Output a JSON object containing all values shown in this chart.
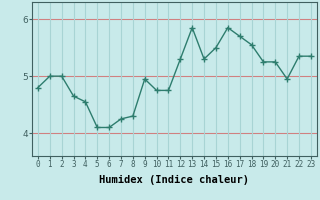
{
  "xlabel": "Humidex (Indice chaleur)",
  "x": [
    0,
    1,
    2,
    3,
    4,
    5,
    6,
    7,
    8,
    9,
    10,
    11,
    12,
    13,
    14,
    15,
    16,
    17,
    18,
    19,
    20,
    21,
    22,
    23
  ],
  "y": [
    4.8,
    5.0,
    5.0,
    4.65,
    4.55,
    4.1,
    4.1,
    4.25,
    4.3,
    4.95,
    4.75,
    4.75,
    5.3,
    5.85,
    5.3,
    5.5,
    5.85,
    5.7,
    5.55,
    5.25,
    5.25,
    4.95,
    5.35,
    5.35
  ],
  "line_color": "#2e7d6e",
  "marker": "+",
  "bg_color": "#c8eaea",
  "grid_color": "#a8d4d4",
  "hline_color": "#d08080",
  "ylim_min": 3.6,
  "ylim_max": 6.3,
  "xlim_min": -0.5,
  "xlim_max": 23.5,
  "yticks": [
    4,
    5,
    6
  ],
  "hlines": [
    4,
    5,
    6
  ],
  "tick_fontsize": 5.5,
  "xlabel_fontsize": 7.5
}
